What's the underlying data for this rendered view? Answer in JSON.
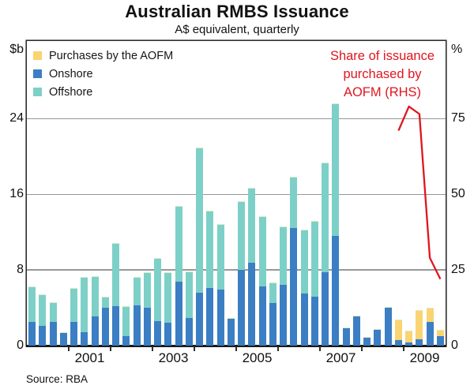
{
  "header": {
    "title": "Australian RMBS Issuance",
    "subtitle": "A$ equivalent, quarterly"
  },
  "source_note": "Source: RBA",
  "annotation": {
    "lines": [
      "Share of issuance",
      "purchased by",
      "AOFM (RHS)"
    ],
    "color": "#e0151e"
  },
  "legend": [
    {
      "key": "aofm",
      "label": "Purchases by the AOFM",
      "color": "#fad472"
    },
    {
      "key": "onshore",
      "label": "Onshore",
      "color": "#3b7ec3"
    },
    {
      "key": "offshore",
      "label": "Offshore",
      "color": "#7dd0c7"
    }
  ],
  "colors": {
    "onshore": "#3b7ec3",
    "offshore": "#7dd0c7",
    "aofm": "#fad472",
    "line": "#e0151e",
    "grid": "#979797"
  },
  "chart_data": {
    "type": "bar",
    "stacked": true,
    "grid": true,
    "left_axis": {
      "unit": "$b",
      "ticks": [
        0,
        8,
        16,
        24
      ],
      "max": 32.2
    },
    "right_axis": {
      "unit": "%",
      "ticks": [
        0,
        25,
        50,
        75
      ],
      "max": 100.6
    },
    "x_axis": {
      "start_year": 2000,
      "end_year": 2010,
      "year_labels": [
        "2001",
        "2003",
        "2005",
        "2007",
        "2009"
      ]
    },
    "categories": [
      "2000Q1",
      "2000Q2",
      "2000Q3",
      "2000Q4",
      "2001Q1",
      "2001Q2",
      "2001Q3",
      "2001Q4",
      "2002Q1",
      "2002Q2",
      "2002Q3",
      "2002Q4",
      "2003Q1",
      "2003Q2",
      "2003Q3",
      "2003Q4",
      "2004Q1",
      "2004Q2",
      "2004Q3",
      "2004Q4",
      "2005Q1",
      "2005Q2",
      "2005Q3",
      "2005Q4",
      "2006Q1",
      "2006Q2",
      "2006Q3",
      "2006Q4",
      "2007Q1",
      "2007Q2",
      "2007Q3",
      "2007Q4",
      "2008Q1",
      "2008Q2",
      "2008Q3",
      "2008Q4",
      "2009Q1",
      "2009Q2",
      "2009Q3",
      "2009Q4"
    ],
    "series": [
      {
        "name": "Onshore",
        "key": "onshore",
        "values": [
          2.5,
          2.1,
          2.5,
          1.3,
          2.5,
          1.4,
          3.1,
          4.0,
          4.2,
          1.0,
          4.3,
          4.0,
          2.6,
          2.4,
          6.8,
          2.9,
          5.6,
          6.1,
          5.9,
          2.8,
          8.0,
          8.8,
          6.3,
          4.5,
          6.4,
          12.4,
          5.5,
          5.2,
          7.8,
          11.6,
          1.8,
          3.1,
          0.8,
          1.7,
          4.0,
          0.6,
          0.3,
          0.7,
          2.5,
          1.0
        ]
      },
      {
        "name": "Offshore",
        "key": "offshore",
        "values": [
          3.7,
          3.2,
          2.0,
          0,
          3.5,
          5.8,
          4.2,
          1.1,
          6.6,
          3.1,
          2.9,
          3.7,
          6.6,
          5.3,
          7.9,
          4.9,
          15.3,
          8.1,
          6.9,
          0,
          7.2,
          7.8,
          7.3,
          2.1,
          6.1,
          5.4,
          6.7,
          7.9,
          11.5,
          13.9,
          0,
          0,
          0,
          0,
          0,
          0,
          0,
          0,
          0,
          0
        ]
      },
      {
        "name": "Purchases by the AOFM",
        "key": "aofm",
        "values": [
          0,
          0,
          0,
          0,
          0,
          0,
          0,
          0,
          0,
          0,
          0,
          0,
          0,
          0,
          0,
          0,
          0,
          0,
          0,
          0,
          0,
          0,
          0,
          0,
          0,
          0,
          0,
          0,
          0,
          0,
          0,
          0,
          0,
          0,
          0,
          2.1,
          1.2,
          3.0,
          1.4,
          0.6
        ]
      }
    ],
    "line": {
      "name": "Share of issuance purchased by AOFM (RHS)",
      "axis": "right",
      "quarters": [
        "2008Q4",
        "2009Q1",
        "2009Q2",
        "2009Q3",
        "2009Q4"
      ],
      "values": [
        71,
        79,
        76.5,
        29,
        22
      ]
    }
  }
}
